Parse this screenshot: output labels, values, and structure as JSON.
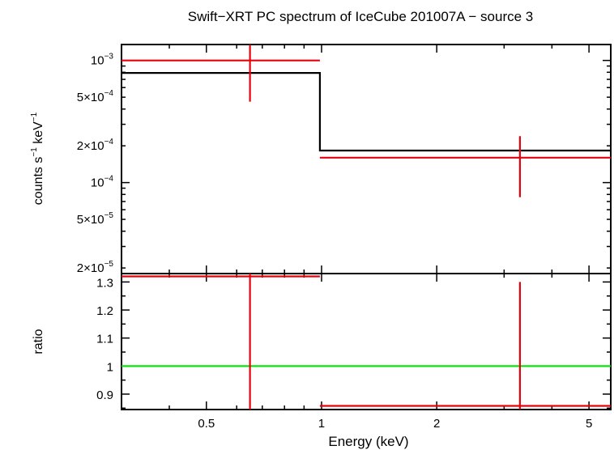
{
  "chart_data": {
    "type": "scatter",
    "title": "Swift−XRT PC spectrum of IceCube 201007A − source 3",
    "xlabel": "Energy (keV)",
    "xscale": "log",
    "xlim": [
      0.3,
      5.7
    ],
    "xticks": [
      {
        "value": 0.5,
        "label": "0.5"
      },
      {
        "value": 1,
        "label": "1"
      },
      {
        "value": 2,
        "label": "2"
      },
      {
        "value": 5,
        "label": "5"
      }
    ],
    "colors": {
      "data": "#e8000b",
      "model": "#000000",
      "unity": "#00e600",
      "axes": "#000000"
    },
    "panels": {
      "spectrum": {
        "ylabel_parts": [
          "counts s",
          "−1",
          " keV",
          "−1"
        ],
        "yscale": "log",
        "ylim": [
          1.8e-05,
          0.00135
        ],
        "yticks": [
          {
            "value": 0.001,
            "mant": "",
            "exp": "−3"
          },
          {
            "value": 0.0005,
            "mant": "5×",
            "exp": "−4"
          },
          {
            "value": 0.0002,
            "mant": "2×",
            "exp": "−4"
          },
          {
            "value": 0.0001,
            "mant": "",
            "exp": "−4"
          },
          {
            "value": 5e-05,
            "mant": "5×",
            "exp": "−5"
          },
          {
            "value": 2e-05,
            "mant": "2×",
            "exp": "−5"
          }
        ],
        "data": [
          {
            "x": 0.65,
            "xlo": 0.3,
            "xhi": 0.99,
            "y": 0.001,
            "ylo": 0.00046,
            "yhi": 0.00135
          },
          {
            "x": 3.3,
            "xlo": 0.99,
            "xhi": 5.7,
            "y": 0.00016,
            "ylo": 7.6e-05,
            "yhi": 0.00024
          }
        ],
        "model": [
          {
            "xlo": 0.3,
            "xhi": 0.99,
            "y": 0.00079
          },
          {
            "xlo": 0.99,
            "xhi": 5.7,
            "y": 0.000183
          }
        ]
      },
      "ratio": {
        "ylabel": "ratio",
        "yscale": "linear",
        "ylim": [
          0.845,
          1.33
        ],
        "yticks": [
          {
            "value": 0.9,
            "label": "0.9"
          },
          {
            "value": 1,
            "label": "1"
          },
          {
            "value": 1.1,
            "label": "1.1"
          },
          {
            "value": 1.2,
            "label": "1.2"
          },
          {
            "value": 1.3,
            "label": "1.3"
          }
        ],
        "reference": 1,
        "data": [
          {
            "x": 0.65,
            "xlo": 0.3,
            "xhi": 0.99,
            "y": 1.32,
            "ylo": 0.845,
            "yhi": 1.33
          },
          {
            "x": 3.3,
            "xlo": 0.99,
            "xhi": 5.7,
            "y": 0.858,
            "ylo": 0.845,
            "yhi": 1.3
          }
        ]
      }
    }
  }
}
